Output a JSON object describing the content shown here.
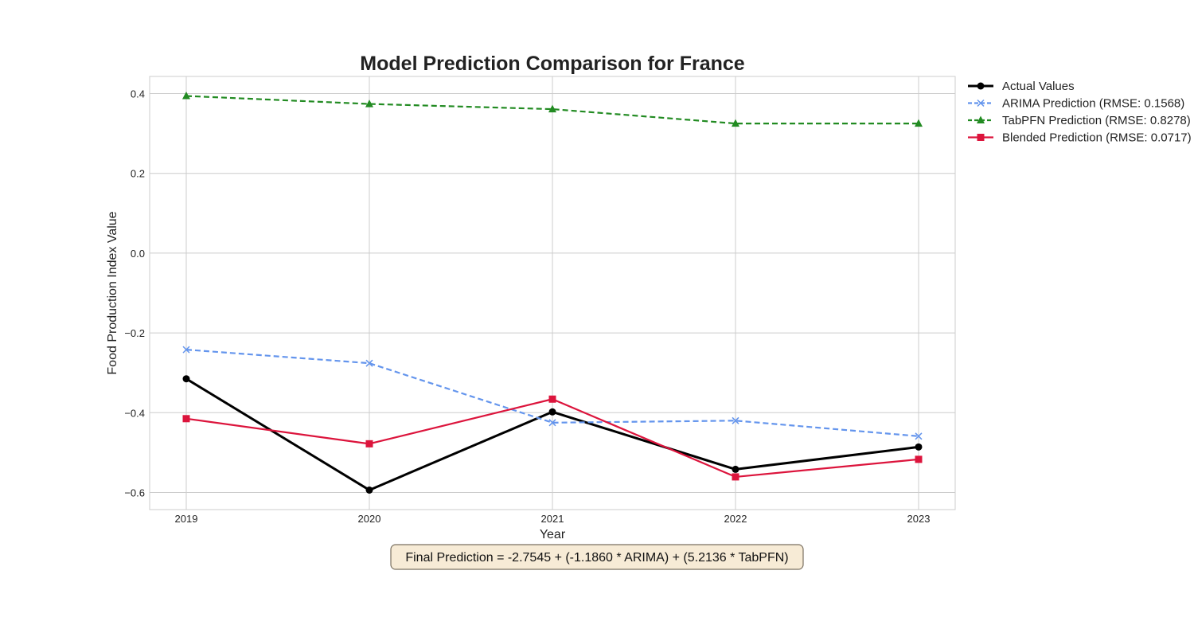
{
  "chart_data": {
    "type": "line",
    "title": "Model Prediction Comparison for France",
    "xlabel": "Year",
    "ylabel": "Food Production Index Value",
    "x": [
      "2019",
      "2020",
      "2021",
      "2022",
      "2023"
    ],
    "yticks": [
      "0.4",
      "0.2",
      "0.0",
      "−0.2",
      "−0.4",
      "−0.6"
    ],
    "ytick_values": [
      0.4,
      0.2,
      0.0,
      -0.2,
      -0.4,
      -0.6
    ],
    "ylim": [
      -0.643,
      0.443
    ],
    "grid": true,
    "legend_position": "outside-top-right",
    "series": [
      {
        "name": "Actual Values",
        "values": [
          -0.315,
          -0.594,
          -0.398,
          -0.542,
          -0.486
        ],
        "color": "#000000",
        "linestyle": "solid",
        "marker": "circle"
      },
      {
        "name": "ARIMA Prediction (RMSE: 0.1568)",
        "values": [
          -0.242,
          -0.276,
          -0.425,
          -0.42,
          -0.459
        ],
        "color": "#6495ed",
        "linestyle": "dashed",
        "marker": "x"
      },
      {
        "name": "TabPFN Prediction (RMSE: 0.8278)",
        "values": [
          0.394,
          0.374,
          0.361,
          0.325,
          0.325
        ],
        "color": "#228b22",
        "linestyle": "dashed",
        "marker": "triangle"
      },
      {
        "name": "Blended Prediction (RMSE: 0.0717)",
        "values": [
          -0.415,
          -0.478,
          -0.366,
          -0.561,
          -0.517
        ],
        "color": "#dc143c",
        "linestyle": "solid",
        "marker": "square"
      }
    ],
    "annotation": "Final Prediction = -2.7545 + (-1.1860 * ARIMA) + (5.2136 * TabPFN)"
  }
}
